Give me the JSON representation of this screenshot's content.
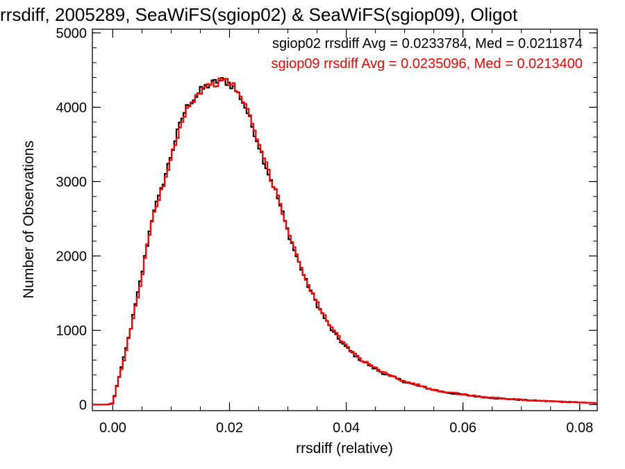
{
  "chart_data": {
    "type": "step-histogram",
    "title": "rrsdiff, 2005289, SeaWiFS(sgiop02) & SeaWiFS(sgiop09), Oligot",
    "xlabel": "rrsdiff (relative)",
    "ylabel": "Number of Observations",
    "xlim": [
      -0.0035,
      0.083
    ],
    "ylim": [
      -80,
      5050
    ],
    "xticks": [
      {
        "value": 0.0,
        "label": "0.00"
      },
      {
        "value": 0.02,
        "label": "0.02"
      },
      {
        "value": 0.04,
        "label": "0.04"
      },
      {
        "value": 0.06,
        "label": "0.06"
      },
      {
        "value": 0.08,
        "label": "0.08"
      }
    ],
    "xminor_step": 0.005,
    "yticks": [
      {
        "value": 0,
        "label": "0"
      },
      {
        "value": 1000,
        "label": "1000"
      },
      {
        "value": 2000,
        "label": "2000"
      },
      {
        "value": 3000,
        "label": "3000"
      },
      {
        "value": 4000,
        "label": "4000"
      },
      {
        "value": 5000,
        "label": "5000"
      }
    ],
    "yminor_step": 200,
    "grid": false,
    "legend_position": "top-right",
    "bin_width": 0.0004,
    "series": [
      {
        "name": "sgiop02",
        "color": "#000000",
        "stats_label": "sgiop02 rrsdiff Avg = 0.0233784, Med = 0.0211874",
        "x": [
          -0.004,
          -0.001,
          0.0,
          0.001,
          0.002,
          0.003,
          0.004,
          0.005,
          0.006,
          0.007,
          0.008,
          0.009,
          0.01,
          0.011,
          0.012,
          0.013,
          0.014,
          0.015,
          0.016,
          0.017,
          0.018,
          0.019,
          0.02,
          0.021,
          0.022,
          0.023,
          0.024,
          0.025,
          0.026,
          0.027,
          0.028,
          0.029,
          0.03,
          0.031,
          0.032,
          0.033,
          0.034,
          0.035,
          0.036,
          0.037,
          0.038,
          0.039,
          0.04,
          0.041,
          0.042,
          0.043,
          0.044,
          0.045,
          0.046,
          0.047,
          0.048,
          0.05,
          0.052,
          0.054,
          0.056,
          0.058,
          0.06,
          0.062,
          0.064,
          0.066,
          0.068,
          0.07,
          0.072,
          0.074,
          0.076,
          0.078,
          0.08,
          0.082,
          0.083
        ],
        "y": [
          0,
          0,
          20,
          350,
          650,
          1000,
          1380,
          1760,
          2200,
          2620,
          2800,
          3080,
          3360,
          3640,
          3880,
          4050,
          4120,
          4220,
          4280,
          4320,
          4350,
          4360,
          4320,
          4240,
          4120,
          3950,
          3720,
          3500,
          3260,
          3050,
          2850,
          2600,
          2330,
          2100,
          1890,
          1680,
          1520,
          1350,
          1210,
          1070,
          950,
          860,
          770,
          700,
          630,
          580,
          530,
          480,
          440,
          400,
          370,
          310,
          260,
          220,
          180,
          155,
          135,
          115,
          98,
          85,
          75,
          65,
          55,
          50,
          43,
          36,
          30,
          25,
          20
        ]
      },
      {
        "name": "sgiop09",
        "color": "#ff0000",
        "stats_label": "sgiop09 rrsdiff Avg = 0.0235096, Med = 0.0213400",
        "x": [
          -0.004,
          -0.001,
          0.0,
          0.001,
          0.002,
          0.003,
          0.004,
          0.005,
          0.006,
          0.007,
          0.008,
          0.009,
          0.01,
          0.011,
          0.012,
          0.013,
          0.014,
          0.015,
          0.016,
          0.017,
          0.018,
          0.019,
          0.02,
          0.021,
          0.022,
          0.023,
          0.024,
          0.025,
          0.026,
          0.027,
          0.028,
          0.029,
          0.03,
          0.031,
          0.032,
          0.033,
          0.034,
          0.035,
          0.036,
          0.037,
          0.038,
          0.039,
          0.04,
          0.041,
          0.042,
          0.043,
          0.044,
          0.045,
          0.046,
          0.047,
          0.048,
          0.05,
          0.052,
          0.054,
          0.056,
          0.058,
          0.06,
          0.062,
          0.064,
          0.066,
          0.068,
          0.07,
          0.072,
          0.074,
          0.076,
          0.078,
          0.08,
          0.082,
          0.083
        ],
        "y": [
          0,
          0,
          15,
          330,
          630,
          980,
          1350,
          1730,
          2170,
          2590,
          2780,
          3050,
          3330,
          3610,
          3850,
          4030,
          4110,
          4210,
          4270,
          4310,
          4340,
          4350,
          4330,
          4260,
          4140,
          3970,
          3740,
          3520,
          3280,
          3070,
          2870,
          2620,
          2350,
          2120,
          1910,
          1700,
          1540,
          1370,
          1230,
          1090,
          970,
          875,
          785,
          710,
          640,
          590,
          540,
          490,
          450,
          410,
          380,
          320,
          270,
          225,
          185,
          160,
          138,
          118,
          100,
          88,
          77,
          67,
          57,
          51,
          44,
          37,
          31,
          26,
          21
        ]
      }
    ]
  }
}
